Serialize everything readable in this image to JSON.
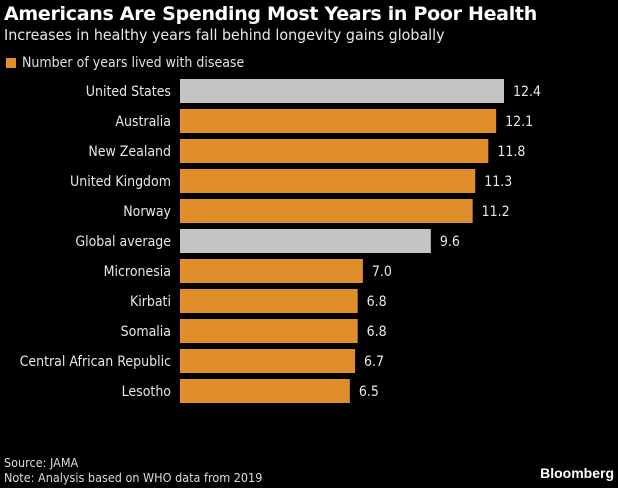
{
  "chart_data": {
    "type": "bar",
    "orientation": "horizontal",
    "title": "Americans Are Spending Most Years in Poor Health",
    "subtitle": "Increases in healthy years fall behind longevity gains globally",
    "legend": [
      {
        "label": "Number of years lived with disease",
        "color": "#e08e2c"
      }
    ],
    "legend_position": "top-left",
    "categories": [
      "United States",
      "Australia",
      "New Zealand",
      "United Kingdom",
      "Norway",
      "Global average",
      "Micronesia",
      "Kirbati",
      "Somalia",
      "Central African Republic",
      "Lesotho"
    ],
    "values": [
      12.4,
      12.1,
      11.8,
      11.3,
      11.2,
      9.6,
      7.0,
      6.8,
      6.8,
      6.7,
      6.5
    ],
    "value_labels": [
      "12.4",
      "12.1",
      "11.8",
      "11.3",
      "11.2",
      "9.6",
      "7.0",
      "6.8",
      "6.8",
      "6.7",
      "6.5"
    ],
    "highlight": [
      true,
      false,
      false,
      false,
      false,
      true,
      false,
      false,
      false,
      false,
      false
    ],
    "colors": {
      "default": "#e08e2c",
      "highlight": "#c4c4c4"
    },
    "xlim": [
      0,
      12.4
    ],
    "grid": false,
    "xlabel": "",
    "ylabel": ""
  },
  "footer": {
    "source": "Source: JAMA",
    "note": "Note: Analysis based on WHO data from 2019",
    "brand": "Bloomberg"
  }
}
